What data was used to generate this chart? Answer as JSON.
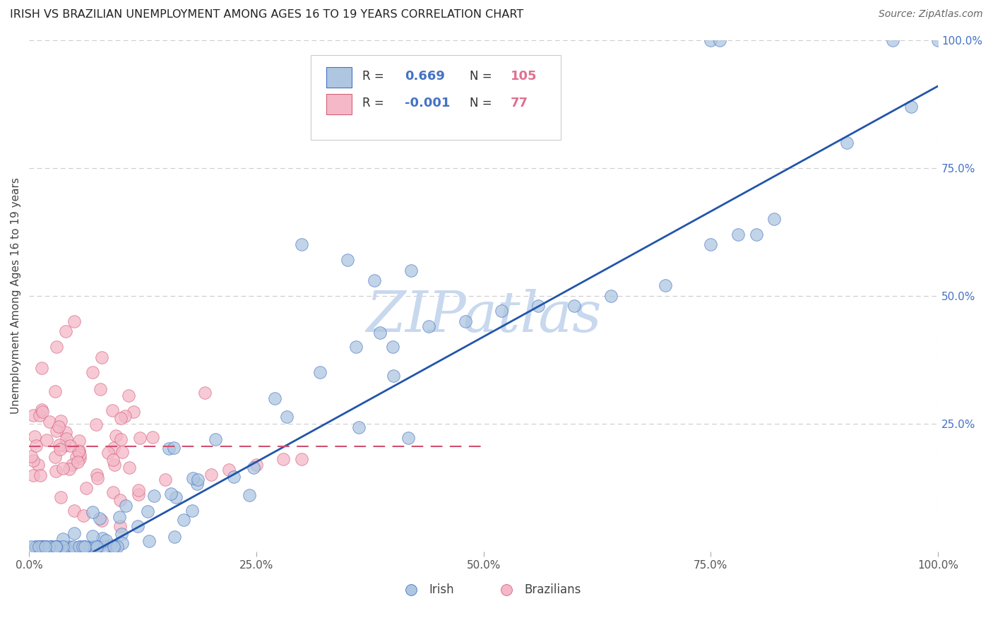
{
  "title": "IRISH VS BRAZILIAN UNEMPLOYMENT AMONG AGES 16 TO 19 YEARS CORRELATION CHART",
  "source": "Source: ZipAtlas.com",
  "ylabel": "Unemployment Among Ages 16 to 19 years",
  "xlim": [
    0,
    1
  ],
  "ylim": [
    0,
    1
  ],
  "xtick_labels": [
    "0.0%",
    "25.0%",
    "50.0%",
    "75.0%",
    "100.0%"
  ],
  "ytick_labels": [
    "25.0%",
    "50.0%",
    "75.0%",
    "100.0%"
  ],
  "irish_R": 0.669,
  "irish_N": 105,
  "brazil_R": -0.001,
  "brazil_N": 77,
  "irish_color": "#aec6e0",
  "irish_edge_color": "#4472c4",
  "brazil_color": "#f4b8c8",
  "brazil_edge_color": "#d4607a",
  "irish_line_color": "#2255aa",
  "brazil_line_color": "#d05070",
  "watermark_color": "#c8d8ee",
  "background_color": "#ffffff",
  "legend_r_color": "#4472c4",
  "legend_n_color": "#e07090",
  "irish_line_slope": 0.98,
  "irish_line_intercept": -0.07,
  "brazil_line_slope": 0.0,
  "brazil_line_intercept": 0.205
}
